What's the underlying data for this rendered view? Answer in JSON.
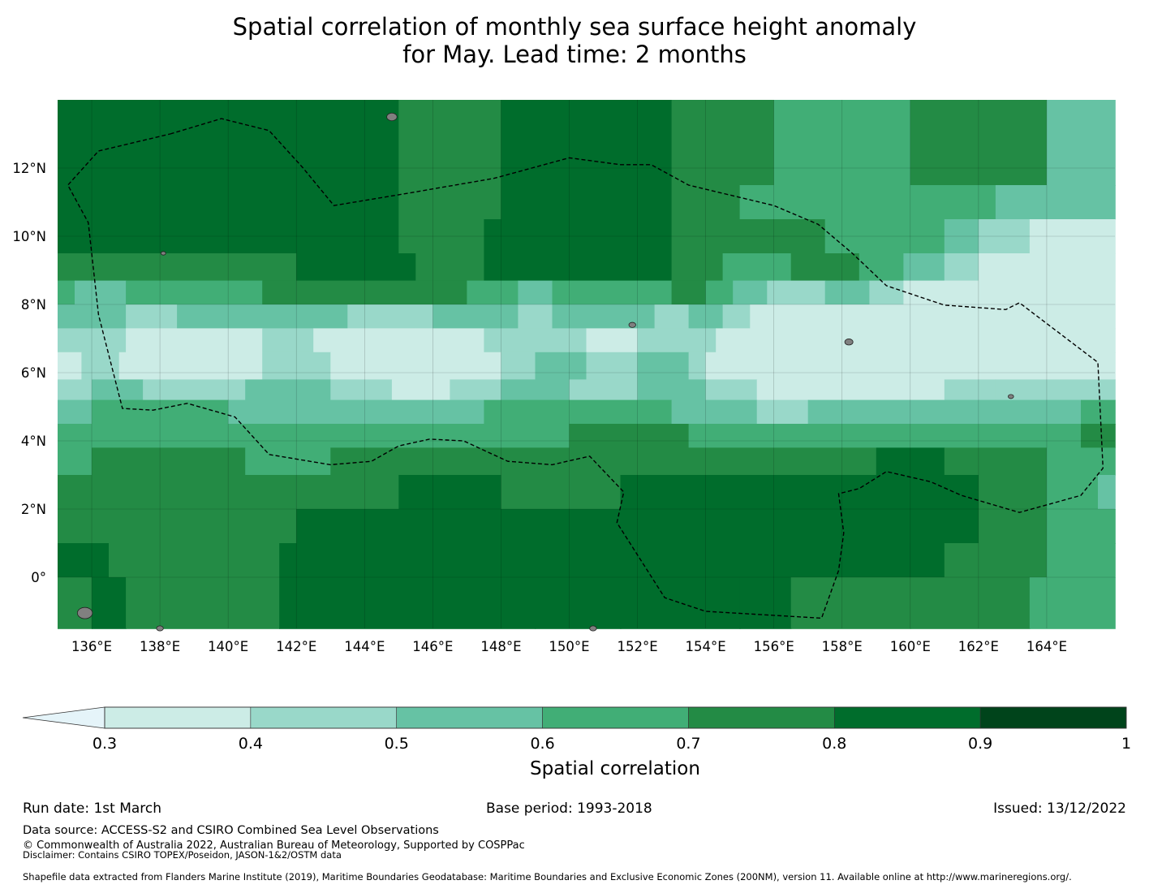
{
  "title": {
    "line1": "Spatial correlation of monthly sea surface height anomaly",
    "line2": "for May. Lead time: 2 months"
  },
  "chart_data": {
    "type": "heatmap",
    "variable": "Spatial correlation",
    "lon_range": [
      135,
      166
    ],
    "lat_range": [
      -1.5,
      14
    ],
    "x_ticks": [
      "136°E",
      "138°E",
      "140°E",
      "142°E",
      "144°E",
      "146°E",
      "148°E",
      "150°E",
      "152°E",
      "154°E",
      "156°E",
      "158°E",
      "160°E",
      "162°E",
      "164°E"
    ],
    "x_tick_values": [
      136,
      138,
      140,
      142,
      144,
      146,
      148,
      150,
      152,
      154,
      156,
      158,
      160,
      162,
      164
    ],
    "y_ticks": [
      "12°N",
      "10°N",
      "8°N",
      "6°N",
      "4°N",
      "2°N",
      "0°"
    ],
    "y_tick_values": [
      12,
      10,
      8,
      6,
      4,
      2,
      0
    ],
    "levels": [
      0.3,
      0.4,
      0.5,
      0.6,
      0.7,
      0.8,
      0.9,
      1
    ],
    "level_labels": [
      "0.3",
      "0.4",
      "0.5",
      "0.6",
      "0.7",
      "0.8",
      "0.9",
      "1"
    ],
    "colors": [
      "#e5f4f9",
      "#ccece6",
      "#99d8c9",
      "#66c2a4",
      "#41ae76",
      "#238b45",
      "#006d2c",
      "#00441b"
    ],
    "colorbar_label": "Spatial correlation",
    "colorbar_extend": "min",
    "land_color": "#808080",
    "eez_boundary": [
      [
        138.3,
        13.0
      ],
      [
        139.8,
        13.45
      ],
      [
        141.2,
        13.1
      ],
      [
        142.2,
        12.0
      ],
      [
        143.1,
        10.9
      ],
      [
        145.5,
        11.3
      ],
      [
        147.8,
        11.7
      ],
      [
        150.0,
        12.3
      ],
      [
        151.5,
        12.1
      ],
      [
        152.4,
        12.1
      ],
      [
        153.5,
        11.5
      ],
      [
        156.0,
        10.9
      ],
      [
        157.3,
        10.35
      ],
      [
        158.3,
        9.5
      ],
      [
        159.3,
        8.55
      ],
      [
        161.0,
        7.98
      ],
      [
        162.8,
        7.85
      ],
      [
        163.2,
        8.05
      ],
      [
        165.5,
        6.3
      ],
      [
        165.65,
        3.2
      ],
      [
        165.0,
        2.4
      ],
      [
        163.2,
        1.9
      ],
      [
        161.5,
        2.4
      ],
      [
        160.6,
        2.8
      ],
      [
        159.3,
        3.1
      ],
      [
        158.5,
        2.6
      ],
      [
        157.9,
        2.45
      ],
      [
        158.05,
        1.3
      ],
      [
        157.9,
        0.2
      ],
      [
        157.4,
        -1.2
      ],
      [
        154.0,
        -1.0
      ],
      [
        152.8,
        -0.6
      ],
      [
        151.4,
        1.6
      ],
      [
        151.6,
        2.5
      ],
      [
        150.6,
        3.55
      ],
      [
        149.5,
        3.3
      ],
      [
        148.2,
        3.4
      ],
      [
        146.9,
        4.0
      ],
      [
        145.9,
        4.05
      ],
      [
        145.0,
        3.85
      ],
      [
        144.2,
        3.4
      ],
      [
        143.0,
        3.3
      ],
      [
        141.2,
        3.6
      ],
      [
        140.2,
        4.7
      ],
      [
        138.8,
        5.1
      ],
      [
        137.8,
        4.9
      ],
      [
        136.9,
        4.95
      ],
      [
        136.2,
        7.7
      ],
      [
        135.9,
        10.4
      ],
      [
        135.3,
        11.5
      ],
      [
        136.2,
        12.5
      ],
      [
        138.3,
        13.0
      ]
    ],
    "bands": [
      {
        "lat_from": 11.5,
        "lat_to": 14.0,
        "segments": [
          [
            135.0,
            0.8
          ],
          [
            136.5,
            0.8
          ],
          [
            140.0,
            0.8
          ],
          [
            145.0,
            0.7
          ],
          [
            148.0,
            0.8
          ],
          [
            153.0,
            0.7
          ],
          [
            156.0,
            0.6
          ],
          [
            160.0,
            0.7
          ],
          [
            162.0,
            0.7
          ],
          [
            164.0,
            0.5
          ],
          [
            166.0,
            0.5
          ]
        ]
      },
      {
        "lat_from": 10.5,
        "lat_to": 11.5,
        "segments": [
          [
            135.0,
            0.8
          ],
          [
            145.0,
            0.7
          ],
          [
            148.0,
            0.8
          ],
          [
            153.0,
            0.7
          ],
          [
            155.0,
            0.6
          ],
          [
            161.0,
            0.6
          ],
          [
            162.5,
            0.5
          ],
          [
            164.0,
            0.5
          ],
          [
            166.0,
            0.5
          ]
        ]
      },
      {
        "lat_from": 9.5,
        "lat_to": 10.5,
        "segments": [
          [
            135.0,
            0.8
          ],
          [
            142.0,
            0.8
          ],
          [
            145.0,
            0.7
          ],
          [
            147.5,
            0.8
          ],
          [
            153.0,
            0.7
          ],
          [
            156.0,
            0.7
          ],
          [
            157.5,
            0.6
          ],
          [
            161.0,
            0.5
          ],
          [
            162.0,
            0.4
          ],
          [
            163.5,
            0.3
          ],
          [
            166.0,
            0.3
          ]
        ]
      },
      {
        "lat_from": 8.7,
        "lat_to": 9.5,
        "segments": [
          [
            135.0,
            0.7
          ],
          [
            142.0,
            0.8
          ],
          [
            145.5,
            0.7
          ],
          [
            147.5,
            0.8
          ],
          [
            153.0,
            0.7
          ],
          [
            154.5,
            0.6
          ],
          [
            156.5,
            0.7
          ],
          [
            158.5,
            0.6
          ],
          [
            159.8,
            0.5
          ],
          [
            161.0,
            0.4
          ],
          [
            162.0,
            0.3
          ],
          [
            166.0,
            0.3
          ]
        ]
      },
      {
        "lat_from": 8.0,
        "lat_to": 8.7,
        "segments": [
          [
            135.0,
            0.6
          ],
          [
            135.5,
            0.5
          ],
          [
            137.0,
            0.6
          ],
          [
            141.0,
            0.7
          ],
          [
            147.0,
            0.6
          ],
          [
            148.5,
            0.5
          ],
          [
            149.5,
            0.6
          ],
          [
            153.0,
            0.7
          ],
          [
            154.0,
            0.6
          ],
          [
            154.8,
            0.5
          ],
          [
            155.8,
            0.4
          ],
          [
            157.5,
            0.5
          ],
          [
            158.8,
            0.4
          ],
          [
            159.8,
            0.3
          ],
          [
            166.0,
            0.3
          ]
        ]
      },
      {
        "lat_from": 7.3,
        "lat_to": 8.0,
        "segments": [
          [
            135.0,
            0.5
          ],
          [
            137.0,
            0.4
          ],
          [
            138.5,
            0.5
          ],
          [
            141.5,
            0.5
          ],
          [
            143.5,
            0.4
          ],
          [
            146.0,
            0.5
          ],
          [
            148.5,
            0.4
          ],
          [
            149.5,
            0.5
          ],
          [
            152.5,
            0.4
          ],
          [
            153.5,
            0.5
          ],
          [
            154.5,
            0.4
          ],
          [
            155.3,
            0.3
          ],
          [
            166.0,
            0.3
          ]
        ]
      },
      {
        "lat_from": 6.6,
        "lat_to": 7.3,
        "segments": [
          [
            135.0,
            0.4
          ],
          [
            137.0,
            0.3
          ],
          [
            141.0,
            0.4
          ],
          [
            142.5,
            0.3
          ],
          [
            144.0,
            0.3
          ],
          [
            145.5,
            0.3
          ],
          [
            147.5,
            0.4
          ],
          [
            149.0,
            0.4
          ],
          [
            150.5,
            0.3
          ],
          [
            152.0,
            0.4
          ],
          [
            153.5,
            0.4
          ],
          [
            154.3,
            0.3
          ],
          [
            166.0,
            0.3
          ]
        ]
      },
      {
        "lat_from": 5.8,
        "lat_to": 6.6,
        "segments": [
          [
            135.0,
            0.3
          ],
          [
            135.7,
            0.4
          ],
          [
            136.8,
            0.3
          ],
          [
            141.0,
            0.4
          ],
          [
            143.0,
            0.3
          ],
          [
            148.0,
            0.4
          ],
          [
            149.0,
            0.5
          ],
          [
            150.5,
            0.4
          ],
          [
            152.0,
            0.5
          ],
          [
            153.5,
            0.4
          ],
          [
            154.0,
            0.3
          ],
          [
            166.0,
            0.3
          ]
        ]
      },
      {
        "lat_from": 5.2,
        "lat_to": 5.8,
        "segments": [
          [
            135.0,
            0.4
          ],
          [
            136.0,
            0.5
          ],
          [
            137.5,
            0.4
          ],
          [
            140.5,
            0.5
          ],
          [
            143.0,
            0.4
          ],
          [
            144.8,
            0.3
          ],
          [
            146.5,
            0.4
          ],
          [
            148.0,
            0.5
          ],
          [
            150.0,
            0.4
          ],
          [
            152.0,
            0.5
          ],
          [
            154.0,
            0.4
          ],
          [
            155.5,
            0.3
          ],
          [
            161.0,
            0.4
          ],
          [
            162.5,
            0.4
          ],
          [
            166.0,
            0.4
          ]
        ]
      },
      {
        "lat_from": 4.5,
        "lat_to": 5.2,
        "segments": [
          [
            135.0,
            0.5
          ],
          [
            136.0,
            0.6
          ],
          [
            140.0,
            0.5
          ],
          [
            146.0,
            0.5
          ],
          [
            147.5,
            0.6
          ],
          [
            153.0,
            0.5
          ],
          [
            155.5,
            0.4
          ],
          [
            157.0,
            0.5
          ],
          [
            162.0,
            0.5
          ],
          [
            164.0,
            0.5
          ],
          [
            165.0,
            0.6
          ],
          [
            166.0,
            0.6
          ]
        ]
      },
      {
        "lat_from": 3.8,
        "lat_to": 4.5,
        "segments": [
          [
            135.0,
            0.6
          ],
          [
            142.0,
            0.6
          ],
          [
            145.0,
            0.6
          ],
          [
            150.0,
            0.7
          ],
          [
            153.5,
            0.6
          ],
          [
            160.0,
            0.6
          ],
          [
            165.0,
            0.7
          ],
          [
            166.0,
            0.7
          ]
        ]
      },
      {
        "lat_from": 3.0,
        "lat_to": 3.8,
        "segments": [
          [
            135.0,
            0.6
          ],
          [
            136.0,
            0.7
          ],
          [
            140.5,
            0.6
          ],
          [
            143.0,
            0.7
          ],
          [
            158.0,
            0.7
          ],
          [
            159.0,
            0.8
          ],
          [
            161.0,
            0.7
          ],
          [
            164.0,
            0.6
          ],
          [
            165.0,
            0.6
          ],
          [
            166.0,
            0.6
          ]
        ]
      },
      {
        "lat_from": 2.0,
        "lat_to": 3.0,
        "segments": [
          [
            135.0,
            0.7
          ],
          [
            145.0,
            0.8
          ],
          [
            148.0,
            0.7
          ],
          [
            151.5,
            0.8
          ],
          [
            162.0,
            0.7
          ],
          [
            164.0,
            0.6
          ],
          [
            165.5,
            0.5
          ],
          [
            166.0,
            0.5
          ]
        ]
      },
      {
        "lat_from": 1.0,
        "lat_to": 2.0,
        "segments": [
          [
            135.0,
            0.7
          ],
          [
            142.0,
            0.8
          ],
          [
            151.0,
            0.8
          ],
          [
            162.0,
            0.7
          ],
          [
            164.0,
            0.6
          ],
          [
            166.0,
            0.6
          ]
        ]
      },
      {
        "lat_from": 0.0,
        "lat_to": 1.0,
        "segments": [
          [
            135.0,
            0.8
          ],
          [
            136.5,
            0.7
          ],
          [
            141.5,
            0.8
          ],
          [
            151.0,
            0.8
          ],
          [
            160.0,
            0.8
          ],
          [
            161.0,
            0.7
          ],
          [
            164.0,
            0.6
          ],
          [
            166.0,
            0.6
          ]
        ]
      },
      {
        "lat_from": -1.5,
        "lat_to": 0.0,
        "segments": [
          [
            135.0,
            0.7
          ],
          [
            136.0,
            0.8
          ],
          [
            137.0,
            0.7
          ],
          [
            141.5,
            0.8
          ],
          [
            149.0,
            0.8
          ],
          [
            151.5,
            0.8
          ],
          [
            155.0,
            0.8
          ],
          [
            156.5,
            0.7
          ],
          [
            160.0,
            0.7
          ],
          [
            163.5,
            0.6
          ],
          [
            166.0,
            0.6
          ]
        ]
      }
    ],
    "islands": [
      {
        "lon": 144.8,
        "lat": 13.5,
        "r": 0.15
      },
      {
        "lon": 158.2,
        "lat": 6.9,
        "r": 0.12
      },
      {
        "lon": 162.95,
        "lat": 5.3,
        "r": 0.08
      },
      {
        "lon": 151.85,
        "lat": 7.4,
        "r": 0.1
      },
      {
        "lon": 138.1,
        "lat": 9.5,
        "r": 0.07
      },
      {
        "lon": 135.8,
        "lat": -1.05,
        "r": 0.22
      },
      {
        "lon": 150.7,
        "lat": -1.5,
        "r": 0.1
      },
      {
        "lon": 138.0,
        "lat": -1.5,
        "r": 0.1
      }
    ]
  },
  "footer": {
    "run_date": "Run date: 1st March",
    "base_period": "Base period: 1993-2018",
    "issued": "Issued: 13/12/2022",
    "data_source": "Data source: ACCESS-S2 and CSIRO Combined Sea Level Observations",
    "copyright": "© Commonwealth of Australia 2022, Australian Bureau of Meteorology, Supported by COSPPac",
    "disclaimer": "Disclaimer: Contains CSIRO TOPEX/Poseidon, JASON-1&2/OSTM data",
    "shapefile": "Shapefile data extracted from Flanders Marine Institute (2019), Maritime Boundaries Geodatabase: Maritime Boundaries and Exclusive Economic Zones (200NM), version 11. Available online at http://www.marineregions.org/."
  }
}
